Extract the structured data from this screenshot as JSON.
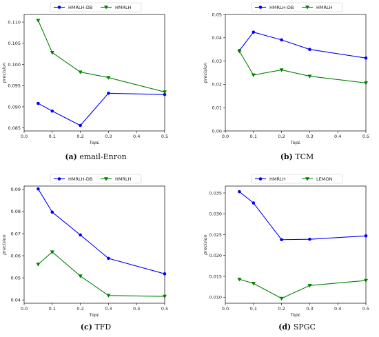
{
  "chart_data": [
    {
      "type": "line",
      "caption_letter": "(a)",
      "caption_text": "email-Enron",
      "xlabel": "TopL",
      "ylabel": "precision",
      "xlim": [
        0.0,
        0.5
      ],
      "ylim": [
        0.0843,
        0.1118
      ],
      "xticks": [
        0.0,
        0.1,
        0.2,
        0.3,
        0.4,
        0.5
      ],
      "xtick_labels": [
        "0.0",
        "0.1",
        "0.2",
        "0.3",
        "0.4",
        "0.5"
      ],
      "yticks": [
        0.085,
        0.09,
        0.095,
        0.1,
        0.105,
        0.11
      ],
      "ytick_labels": [
        "0.085",
        "0.090",
        "0.095",
        "0.100",
        "0.105",
        "0.110"
      ],
      "legend_position": "top",
      "x": [
        0.05,
        0.1,
        0.2,
        0.3,
        0.5
      ],
      "series": [
        {
          "name": "HMRLH-DB",
          "color": "#0000ff",
          "marker": "circle",
          "values": [
            0.0908,
            0.089,
            0.0856,
            0.0932,
            0.0929
          ]
        },
        {
          "name": "HMRLH",
          "color": "#008000",
          "marker": "triangle-down",
          "values": [
            0.1104,
            0.1028,
            0.0982,
            0.0969,
            0.0935
          ]
        }
      ]
    },
    {
      "type": "line",
      "caption_letter": "(b)",
      "caption_text": "TCM",
      "xlabel": "TopL",
      "ylabel": "precision",
      "xlim": [
        0.0,
        0.5
      ],
      "ylim": [
        0.0,
        0.05
      ],
      "xticks": [
        0.0,
        0.1,
        0.2,
        0.3,
        0.4,
        0.5
      ],
      "xtick_labels": [
        "0.0",
        "0.1",
        "0.2",
        "0.3",
        "0.4",
        "0.5"
      ],
      "yticks": [
        0.0,
        0.01,
        0.02,
        0.03,
        0.04,
        0.05
      ],
      "ytick_labels": [
        "0.00",
        "0.01",
        "0.02",
        "0.03",
        "0.04",
        "0.05"
      ],
      "legend_position": "top",
      "x": [
        0.05,
        0.1,
        0.2,
        0.3,
        0.5
      ],
      "series": [
        {
          "name": "HMRLH-DB",
          "color": "#0000ff",
          "marker": "circle",
          "values": [
            0.0345,
            0.0424,
            0.0391,
            0.035,
            0.0313
          ]
        },
        {
          "name": "HMRLH",
          "color": "#008000",
          "marker": "triangle-down",
          "values": [
            0.0342,
            0.024,
            0.0262,
            0.0235,
            0.0206
          ]
        }
      ]
    },
    {
      "type": "line",
      "caption_letter": "(c)",
      "caption_text": "TFD",
      "xlabel": "TopL",
      "ylabel": "precision",
      "xlim": [
        0.0,
        0.5
      ],
      "ylim": [
        0.0385,
        0.0915
      ],
      "xticks": [
        0.0,
        0.1,
        0.2,
        0.3,
        0.4,
        0.5
      ],
      "xtick_labels": [
        "0.0",
        "0.1",
        "0.2",
        "0.3",
        "0.4",
        "0.5"
      ],
      "yticks": [
        0.04,
        0.05,
        0.06,
        0.07,
        0.08,
        0.09
      ],
      "ytick_labels": [
        "0.04",
        "0.05",
        "0.06",
        "0.07",
        "0.08",
        "0.09"
      ],
      "legend_position": "top",
      "x": [
        0.05,
        0.1,
        0.2,
        0.3,
        0.5
      ],
      "series": [
        {
          "name": "HMRLH-DB",
          "color": "#0000ff",
          "marker": "circle",
          "values": [
            0.0902,
            0.0797,
            0.0694,
            0.0588,
            0.0518
          ]
        },
        {
          "name": "HMRLH",
          "color": "#008000",
          "marker": "triangle-down",
          "values": [
            0.0561,
            0.0617,
            0.0508,
            0.042,
            0.0416
          ]
        }
      ]
    },
    {
      "type": "line",
      "caption_letter": "(d)",
      "caption_text": "SPGC",
      "xlabel": "TopL",
      "ylabel": "precision",
      "xlim": [
        0.0,
        0.5
      ],
      "ylim": [
        0.00855,
        0.03665
      ],
      "xticks": [
        0.0,
        0.1,
        0.2,
        0.3,
        0.4,
        0.5
      ],
      "xtick_labels": [
        "0.0",
        "0.1",
        "0.2",
        "0.3",
        "0.4",
        "0.5"
      ],
      "yticks": [
        0.01,
        0.015,
        0.02,
        0.025,
        0.03,
        0.035
      ],
      "ytick_labels": [
        "0.010",
        "0.015",
        "0.020",
        "0.025",
        "0.030",
        "0.035"
      ],
      "legend_position": "top",
      "x": [
        0.05,
        0.1,
        0.2,
        0.3,
        0.5
      ],
      "series": [
        {
          "name": "HMRLH",
          "color": "#0000ff",
          "marker": "circle",
          "values": [
            0.0353,
            0.0326,
            0.0238,
            0.0239,
            0.0247
          ]
        },
        {
          "name": "LEMON",
          "color": "#008000",
          "marker": "triangle-down",
          "values": [
            0.0143,
            0.0133,
            0.0097,
            0.0128,
            0.014
          ]
        }
      ]
    }
  ]
}
